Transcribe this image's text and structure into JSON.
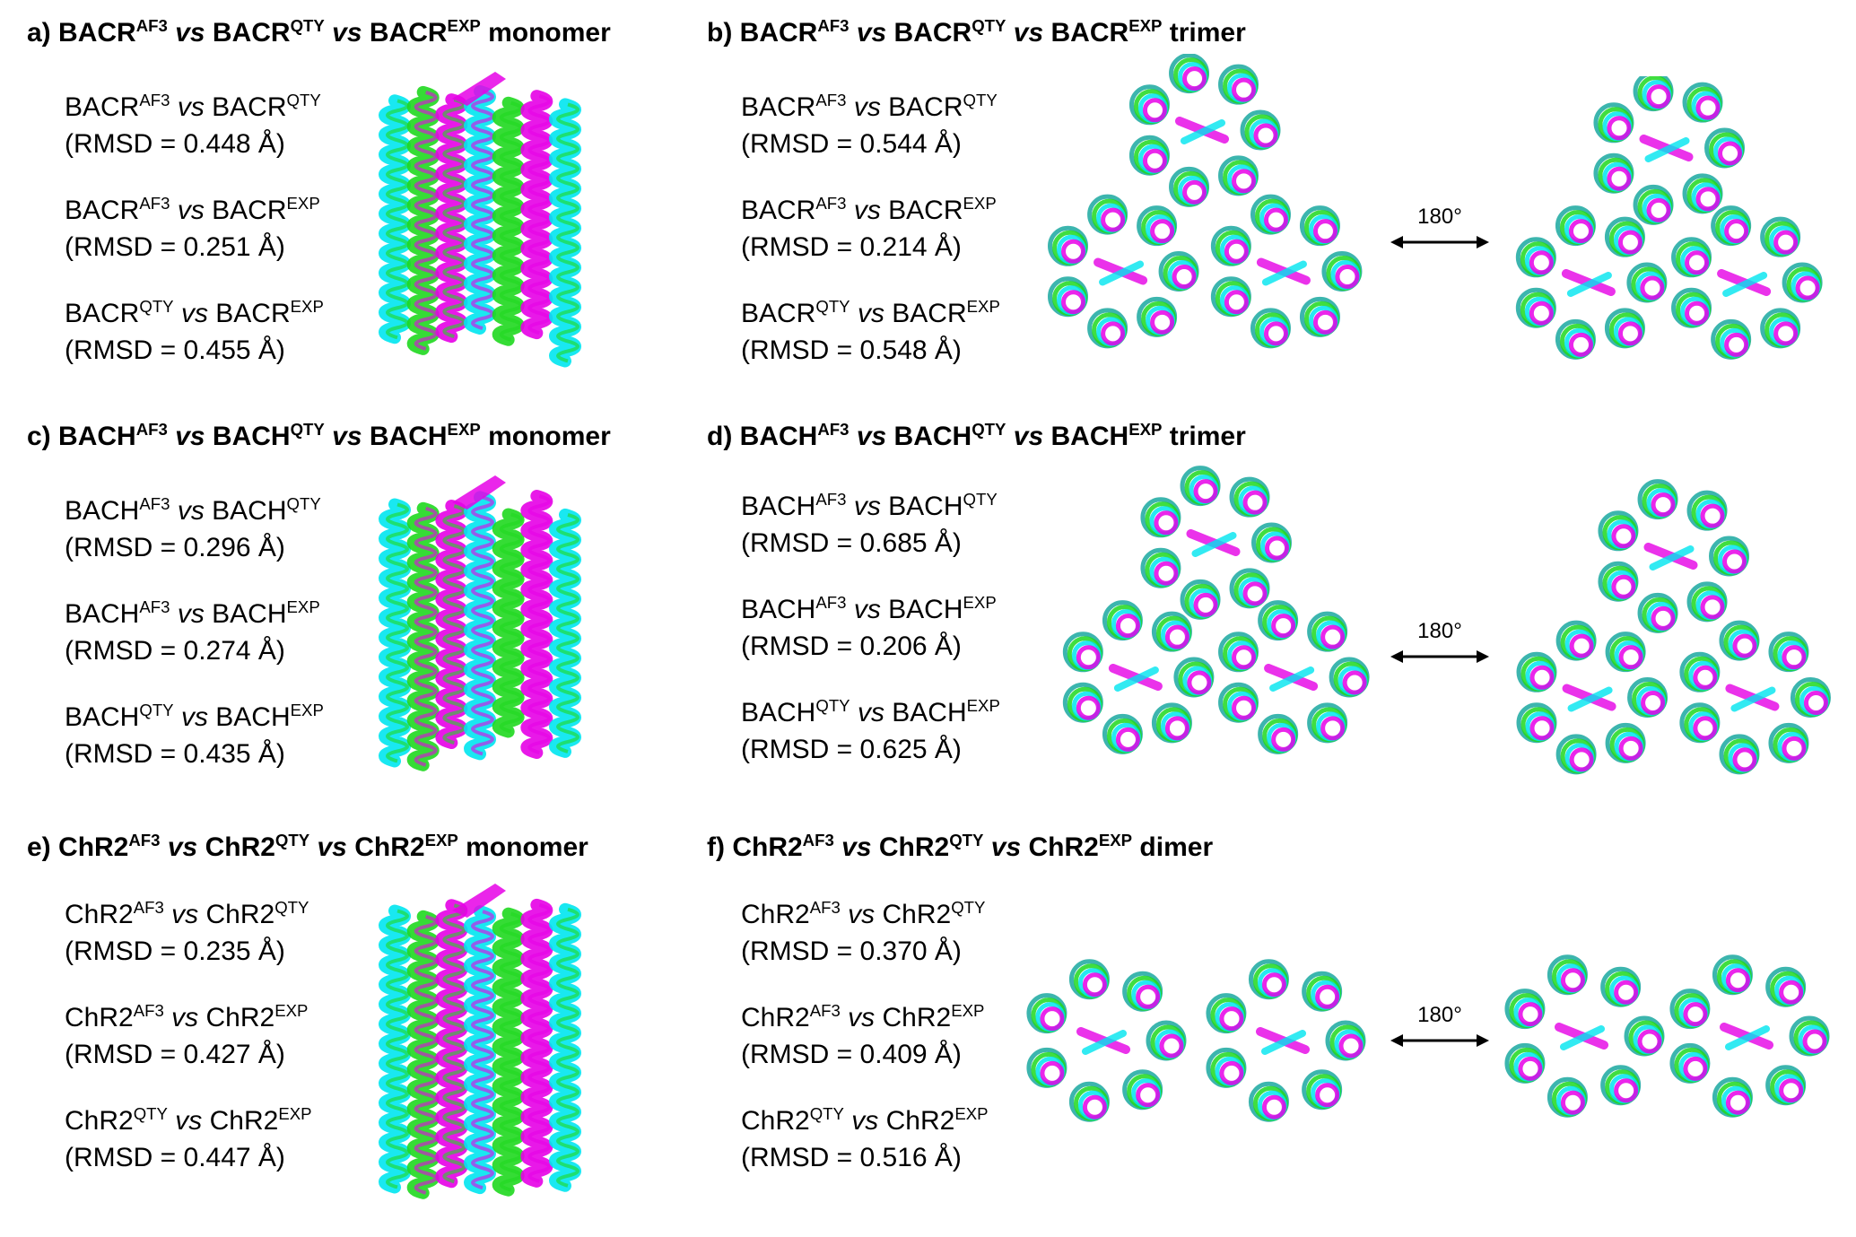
{
  "panels": [
    {
      "id": "a",
      "title": {
        "label": "a)",
        "p1": "BACR",
        "s1": "AF3",
        "vs1": "vs",
        "p2": "BACR",
        "s2": "QTY",
        "vs2": "vs",
        "p3": "BACR",
        "s3": "EXP",
        "suffix": "monomer"
      },
      "comparisons": [
        {
          "p1": "BACR",
          "s1": "AF3",
          "vs": "vs",
          "p2": "BACR",
          "s2": "QTY",
          "rmsd": "(RMSD = 0.448 Å)"
        },
        {
          "p1": "BACR",
          "s1": "AF3",
          "vs": "vs",
          "p2": "BACR",
          "s2": "EXP",
          "rmsd": "(RMSD = 0.251 Å)"
        },
        {
          "p1": "BACR",
          "s1": "QTY",
          "vs": "vs",
          "p2": "BACR",
          "s2": "EXP",
          "rmsd": "(RMSD = 0.455 Å)"
        }
      ]
    },
    {
      "id": "b",
      "title": {
        "label": "b)",
        "p1": "BACR",
        "s1": "AF3",
        "vs1": "vs",
        "p2": "BACR",
        "s2": "QTY",
        "vs2": "vs",
        "p3": "BACR",
        "s3": "EXP",
        "suffix": "trimer"
      },
      "comparisons": [
        {
          "p1": "BACR",
          "s1": "AF3",
          "vs": "vs",
          "p2": "BACR",
          "s2": "QTY",
          "rmsd": "(RMSD = 0.544 Å)"
        },
        {
          "p1": "BACR",
          "s1": "AF3",
          "vs": "vs",
          "p2": "BACR",
          "s2": "EXP",
          "rmsd": "(RMSD = 0.214 Å)"
        },
        {
          "p1": "BACR",
          "s1": "QTY",
          "vs": "vs",
          "p2": "BACR",
          "s2": "EXP",
          "rmsd": "(RMSD = 0.548 Å)"
        }
      ],
      "rotation": "180°"
    },
    {
      "id": "c",
      "title": {
        "label": "c)",
        "p1": "BACH",
        "s1": "AF3",
        "vs1": "vs",
        "p2": "BACH",
        "s2": "QTY",
        "vs2": "vs",
        "p3": "BACH",
        "s3": "EXP",
        "suffix": "monomer"
      },
      "comparisons": [
        {
          "p1": "BACH",
          "s1": "AF3",
          "vs": "vs",
          "p2": "BACH",
          "s2": "QTY",
          "rmsd": "(RMSD = 0.296 Å)"
        },
        {
          "p1": "BACH",
          "s1": "AF3",
          "vs": "vs",
          "p2": "BACH",
          "s2": "EXP",
          "rmsd": "(RMSD = 0.274 Å)"
        },
        {
          "p1": "BACH",
          "s1": "QTY",
          "vs": "vs",
          "p2": "BACH",
          "s2": "EXP",
          "rmsd": "(RMSD = 0.435 Å)"
        }
      ]
    },
    {
      "id": "d",
      "title": {
        "label": "d)",
        "p1": "BACH",
        "s1": "AF3",
        "vs1": "vs",
        "p2": "BACH",
        "s2": "QTY",
        "vs2": "vs",
        "p3": "BACH",
        "s3": "EXP",
        "suffix": "trimer"
      },
      "comparisons": [
        {
          "p1": "BACH",
          "s1": "AF3",
          "vs": "vs",
          "p2": "BACH",
          "s2": "QTY",
          "rmsd": "(RMSD = 0.685 Å)"
        },
        {
          "p1": "BACH",
          "s1": "AF3",
          "vs": "vs",
          "p2": "BACH",
          "s2": "EXP",
          "rmsd": "(RMSD = 0.206 Å)"
        },
        {
          "p1": "BACH",
          "s1": "QTY",
          "vs": "vs",
          "p2": "BACH",
          "s2": "EXP",
          "rmsd": "(RMSD = 0.625 Å)"
        }
      ],
      "rotation": "180°"
    },
    {
      "id": "e",
      "title": {
        "label": "e)",
        "p1": "ChR2",
        "s1": "AF3",
        "vs1": "vs",
        "p2": "ChR2",
        "s2": "QTY",
        "vs2": "vs",
        "p3": "ChR2",
        "s3": "EXP",
        "suffix": "monomer"
      },
      "comparisons": [
        {
          "p1": "ChR2",
          "s1": "AF3",
          "vs": "vs",
          "p2": "ChR2",
          "s2": "QTY",
          "rmsd": "(RMSD = 0.235 Å)"
        },
        {
          "p1": "ChR2",
          "s1": "AF3",
          "vs": "vs",
          "p2": "ChR2",
          "s2": "EXP",
          "rmsd": "(RMSD = 0.427 Å)"
        },
        {
          "p1": "ChR2",
          "s1": "QTY",
          "vs": "vs",
          "p2": "ChR2",
          "s2": "EXP",
          "rmsd": "(RMSD = 0.447 Å)"
        }
      ]
    },
    {
      "id": "f",
      "title": {
        "label": "f)",
        "p1": "ChR2",
        "s1": "AF3",
        "vs1": "vs",
        "p2": "ChR2",
        "s2": "QTY",
        "vs2": "vs",
        "p3": "ChR2",
        "s3": "EXP",
        "suffix": "dimer"
      },
      "comparisons": [
        {
          "p1": "ChR2",
          "s1": "AF3",
          "vs": "vs",
          "p2": "ChR2",
          "s2": "QTY",
          "rmsd": "(RMSD = 0.370 Å)"
        },
        {
          "p1": "ChR2",
          "s1": "AF3",
          "vs": "vs",
          "p2": "ChR2",
          "s2": "EXP",
          "rmsd": "(RMSD = 0.409 Å)"
        },
        {
          "p1": "ChR2",
          "s1": "QTY",
          "vs": "vs",
          "p2": "ChR2",
          "s2": "EXP",
          "rmsd": "(RMSD = 0.516 Å)"
        }
      ],
      "rotation": "180°"
    }
  ],
  "colors": {
    "af3": "#1fd81f",
    "qty": "#00e5f0",
    "exp": "#e600e6",
    "teal": "#1aa8a0"
  }
}
